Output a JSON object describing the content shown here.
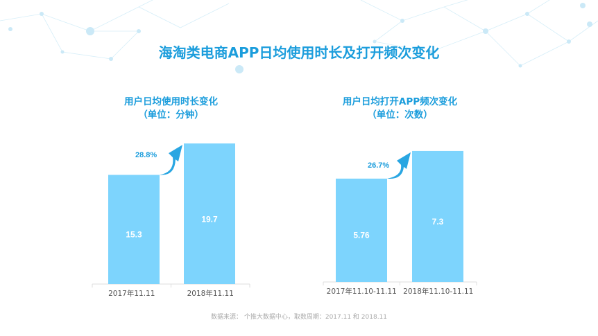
{
  "title": "海淘类电商APP日均使用时长及打开频次变化",
  "source": "数据来源： 个推大数据中心，取数周期：2017.11 和 2018.11",
  "colors": {
    "bar": "#7dd4fd",
    "arrow": "#29a6e2",
    "text": "#1b9ddc"
  },
  "chart_data": [
    {
      "type": "bar",
      "title": "用户日均使用时长变化",
      "subtitle": "（单位：分钟）",
      "categories": [
        "2017年11.11",
        "2018年11.11"
      ],
      "values": [
        15.3,
        19.7
      ],
      "value_labels": [
        "15.3",
        "19.7"
      ],
      "growth_label": "28.8%",
      "ylim": [
        0,
        20
      ]
    },
    {
      "type": "bar",
      "title": "用户日均打开APP频次变化",
      "subtitle": "（单位：次数）",
      "categories": [
        "2017年11.10-11.11",
        "2018年11.10-11.11"
      ],
      "values": [
        5.76,
        7.3
      ],
      "value_labels": [
        "5.76",
        "7.3"
      ],
      "growth_label": "26.7%",
      "ylim": [
        0,
        7.5
      ]
    }
  ]
}
